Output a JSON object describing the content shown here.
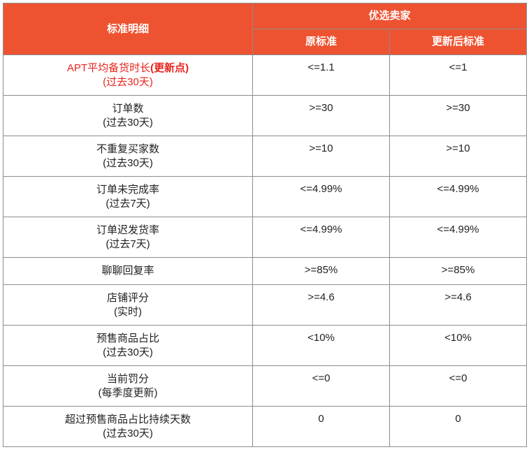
{
  "header": {
    "criteria": "标准明细",
    "group": "优选卖家",
    "original": "原标准",
    "updated": "更新后标准"
  },
  "rows": [
    {
      "label": "APT平均备货时长",
      "label_tag": "(更新点)",
      "sub": "(过去30天)",
      "original": "<=1.1",
      "updated": "<=1"
    },
    {
      "label": "订单数",
      "sub": "(过去30天)",
      "original": ">=30",
      "updated": ">=30"
    },
    {
      "label": "不重复买家数",
      "sub": "(过去30天)",
      "original": ">=10",
      "updated": ">=10"
    },
    {
      "label": "订单未完成率",
      "sub": "(过去7天)",
      "original": "<=4.99%",
      "updated": "<=4.99%"
    },
    {
      "label": "订单迟发货率",
      "sub": "(过去7天)",
      "original": "<=4.99%",
      "updated": "<=4.99%"
    },
    {
      "label": "聊聊回复率",
      "original": ">=85%",
      "updated": ">=85%"
    },
    {
      "label": "店铺评分",
      "sub": "(实时)",
      "original": ">=4.6",
      "updated": ">=4.6"
    },
    {
      "label": "预售商品占比",
      "sub": "(过去30天)",
      "original": "<10%",
      "updated": "<10%"
    },
    {
      "label": "当前罚分",
      "sub": "(每季度更新)",
      "original": "<=0",
      "updated": "<=0"
    },
    {
      "label": "超过预售商品占比持续天数",
      "sub": "(过去30天)",
      "original": "0",
      "updated": "0"
    }
  ],
  "colors": {
    "header_bg": "#ee5331",
    "highlight_text": "#e8241c",
    "border": "#8c8c8c"
  }
}
